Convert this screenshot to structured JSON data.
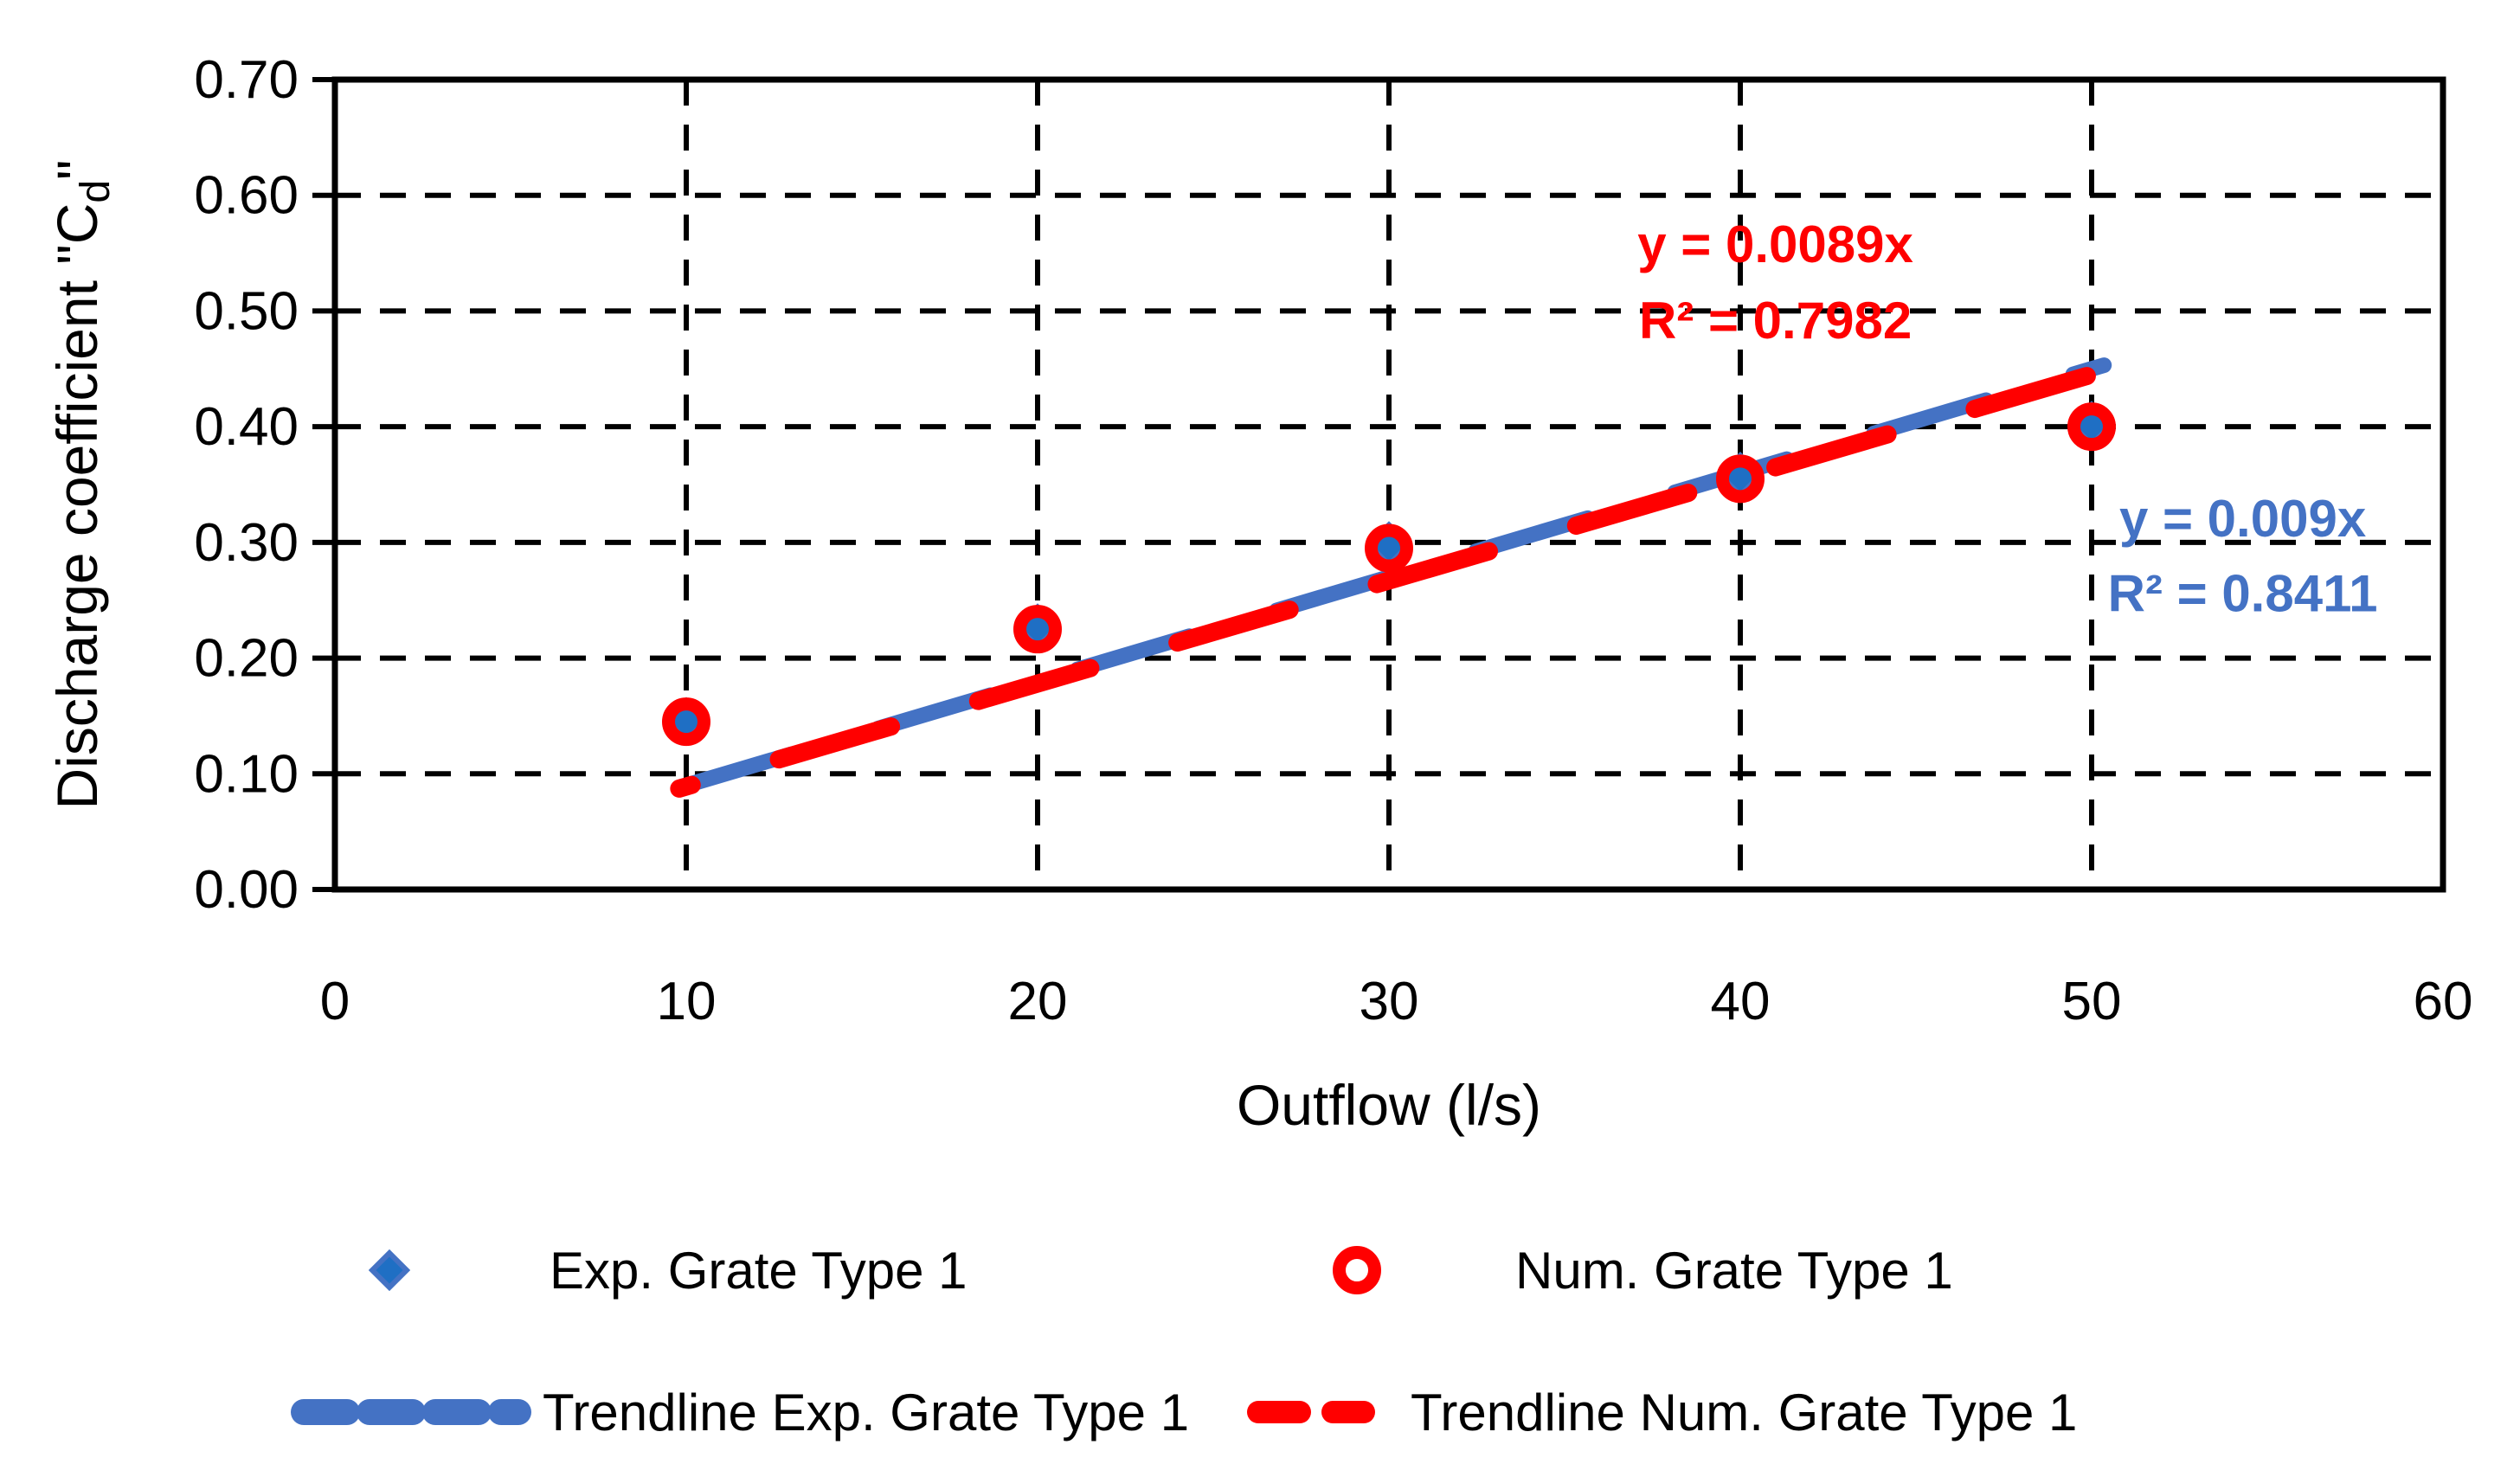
{
  "background": "#FFFFFF",
  "chart_data": {
    "type": "scatter",
    "title": "",
    "xlabel": "Outflow (l/s)",
    "ylabel": "Discharge coefficient \"Cd\"",
    "ylabel_parts": {
      "pre": "Discharge coefficient \"C",
      "sub": "d",
      "post": "\""
    },
    "xlim": [
      0,
      60
    ],
    "ylim": [
      0.0,
      0.7
    ],
    "xticks": {
      "values": [
        0,
        10,
        20,
        30,
        40,
        50,
        60
      ],
      "labels": [
        "0",
        "10",
        "20",
        "30",
        "40",
        "50",
        "60"
      ]
    },
    "yticks": {
      "values": [
        0.0,
        0.1,
        0.2,
        0.3,
        0.4,
        0.5,
        0.6,
        0.7
      ],
      "labels": [
        "0.00",
        "0.10",
        "0.20",
        "0.30",
        "0.40",
        "0.50",
        "0.60",
        "0.70"
      ]
    },
    "grid": "dashed-black-both-axes",
    "series": [
      {
        "name": "Exp. Grate Type 1",
        "type": "scatter",
        "marker": "diamond",
        "fill_color": "#1F6FC4",
        "border_color": "#4472C4",
        "x": [
          10,
          20,
          30,
          40,
          50
        ],
        "y": [
          0.146,
          0.227,
          0.298,
          0.358,
          0.402
        ]
      },
      {
        "name": "Num. Grate Type 1",
        "type": "scatter",
        "marker": "ring",
        "color": "#FF0000",
        "x": [
          10,
          20,
          30,
          40,
          50
        ],
        "y": [
          0.145,
          0.225,
          0.295,
          0.355,
          0.4
        ]
      },
      {
        "name": "Trendline Exp. Grate Type 1",
        "type": "trendline",
        "color": "#4472C4",
        "slope": 0.009,
        "intercept": 0,
        "r2": 0.8411,
        "x_range": [
          9.8,
          50.35
        ]
      },
      {
        "name": "Trendline Num. Grate Type 1",
        "type": "trendline",
        "color": "#FF0000",
        "slope": 0.0089,
        "intercept": 0,
        "r2": 0.7982,
        "x_range": [
          9.8,
          50.3
        ]
      }
    ],
    "annotations": [
      {
        "series": "Trendline Num. Grate Type 1",
        "color": "#FF0000",
        "lines": [
          "y = 0.0089x",
          "R² = 0.7982"
        ],
        "x": 41.0,
        "y_lines": [
          0.558,
          0.492
        ]
      },
      {
        "series": "Trendline Exp. Grate Type 1",
        "color": "#4472C4",
        "lines": [
          "y = 0.009x",
          "R² = 0.8411"
        ],
        "x": 54.3,
        "y_lines": [
          0.321,
          0.256
        ]
      }
    ],
    "legend": {
      "position": "bottom",
      "rows": [
        [
          {
            "marker": "blue-diamond",
            "label": "Exp. Grate Type 1"
          },
          {
            "marker": "red-ring",
            "label": "Num. Grate Type 1"
          }
        ],
        [
          {
            "marker": "blue-dashed-line",
            "label": "Trendline Exp. Grate Type 1"
          },
          {
            "marker": "red-dashed-line",
            "label": "Trendline Num. Grate Type 1"
          }
        ]
      ]
    },
    "colors": {
      "exp_fill": "#1F6FC4",
      "exp_border": "#4472C4",
      "num_red": "#FF0000",
      "axis_black": "#000000"
    }
  }
}
